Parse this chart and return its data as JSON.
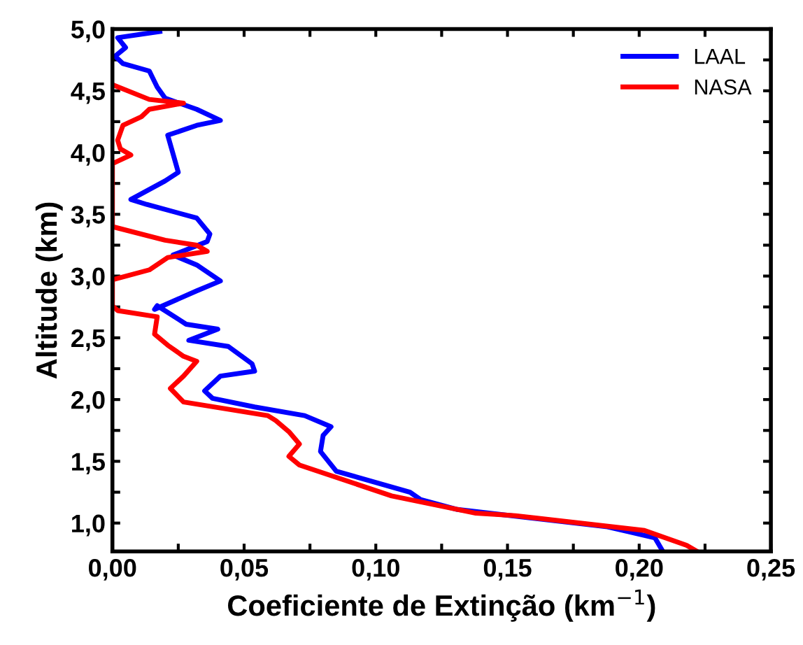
{
  "chart_data": {
    "type": "line",
    "xlabel": "Coeficiente de Extinção (km$^{−1}$)",
    "ylabel": "Altitude (km)",
    "xlim": [
      0,
      0.25
    ],
    "ylim": [
      0.77,
      5.0
    ],
    "xticks": [
      {
        "value": 0,
        "label": "0,00"
      },
      {
        "value": 0.025,
        "label": null
      },
      {
        "value": 0.05,
        "label": "0,05"
      },
      {
        "value": 0.075,
        "label": null
      },
      {
        "value": 0.1,
        "label": "0,10"
      },
      {
        "value": 0.125,
        "label": null
      },
      {
        "value": 0.15,
        "label": "0,15"
      },
      {
        "value": 0.175,
        "label": null
      },
      {
        "value": 0.2,
        "label": "0,20"
      },
      {
        "value": 0.225,
        "label": null
      },
      {
        "value": 0.25,
        "label": "0,25"
      }
    ],
    "yticks": [
      {
        "value": 1.0,
        "label": "1,0"
      },
      {
        "value": 1.25,
        "label": null
      },
      {
        "value": 1.5,
        "label": "1,5"
      },
      {
        "value": 1.75,
        "label": null
      },
      {
        "value": 2.0,
        "label": "2,0"
      },
      {
        "value": 2.25,
        "label": null
      },
      {
        "value": 2.5,
        "label": "2,5"
      },
      {
        "value": 2.75,
        "label": null
      },
      {
        "value": 3.0,
        "label": "3,0"
      },
      {
        "value": 3.25,
        "label": null
      },
      {
        "value": 3.5,
        "label": "3,5"
      },
      {
        "value": 3.75,
        "label": null
      },
      {
        "value": 4.0,
        "label": "4,0"
      },
      {
        "value": 4.25,
        "label": null
      },
      {
        "value": 4.5,
        "label": "4,5"
      },
      {
        "value": 4.75,
        "label": null
      },
      {
        "value": 5.0,
        "label": "5,0"
      }
    ],
    "grid": false,
    "legend": "top right",
    "line_style": "solid",
    "marker": "none",
    "series": [
      {
        "name": "LAAL",
        "color": "#0000ff",
        "x": [
          0.209,
          0.206,
          0.188,
          0.131,
          0.117,
          0.113,
          0.085,
          0.079,
          0.08,
          0.083,
          0.073,
          0.054,
          0.038,
          0.035,
          0.041,
          0.054,
          0.053,
          0.044,
          0.029,
          0.04,
          0.028,
          0.017,
          0.016,
          0.032,
          0.041,
          0.032,
          0.023,
          0.036,
          0.037,
          0.032,
          0.013,
          0.007,
          0.02,
          0.025,
          0.023,
          0.021,
          0.032,
          0.041,
          0.032,
          0.02,
          0.017,
          0.014,
          0.004,
          0.001,
          0.005,
          0.002,
          0.018
        ],
        "values": [
          0.77,
          0.88,
          0.97,
          1.11,
          1.19,
          1.25,
          1.42,
          1.58,
          1.71,
          1.78,
          1.87,
          1.94,
          2.01,
          2.07,
          2.19,
          2.23,
          2.29,
          2.43,
          2.48,
          2.57,
          2.61,
          2.76,
          2.73,
          2.88,
          2.96,
          3.09,
          3.17,
          3.28,
          3.34,
          3.47,
          3.58,
          3.62,
          3.77,
          3.84,
          3.99,
          4.14,
          4.22,
          4.26,
          4.35,
          4.44,
          4.53,
          4.66,
          4.72,
          4.78,
          4.85,
          4.93,
          4.98
        ]
      },
      {
        "name": "NASA",
        "color": "#ff0000",
        "x": [
          0.222,
          0.218,
          0.202,
          0.153,
          0.138,
          0.106,
          0.071,
          0.067,
          0.071,
          0.067,
          0.062,
          0.059,
          0.027,
          0.022,
          0.027,
          0.032,
          0.027,
          0.021,
          0.016,
          0.017,
          0.002,
          0.0,
          0.0,
          0.014,
          0.021,
          0.036,
          0.032,
          0.02,
          0.0,
          0.0,
          0.007,
          0.003,
          0.002,
          0.004,
          0.011,
          0.014,
          0.027,
          0.014,
          0.0
        ],
        "values": [
          0.77,
          0.82,
          0.94,
          1.06,
          1.08,
          1.22,
          1.47,
          1.54,
          1.64,
          1.74,
          1.83,
          1.87,
          1.98,
          2.09,
          2.19,
          2.31,
          2.35,
          2.44,
          2.53,
          2.67,
          2.72,
          2.76,
          2.97,
          3.05,
          3.15,
          3.2,
          3.25,
          3.29,
          3.4,
          3.91,
          3.98,
          4.03,
          4.1,
          4.22,
          4.29,
          4.35,
          4.4,
          4.43,
          4.55
        ]
      }
    ]
  }
}
